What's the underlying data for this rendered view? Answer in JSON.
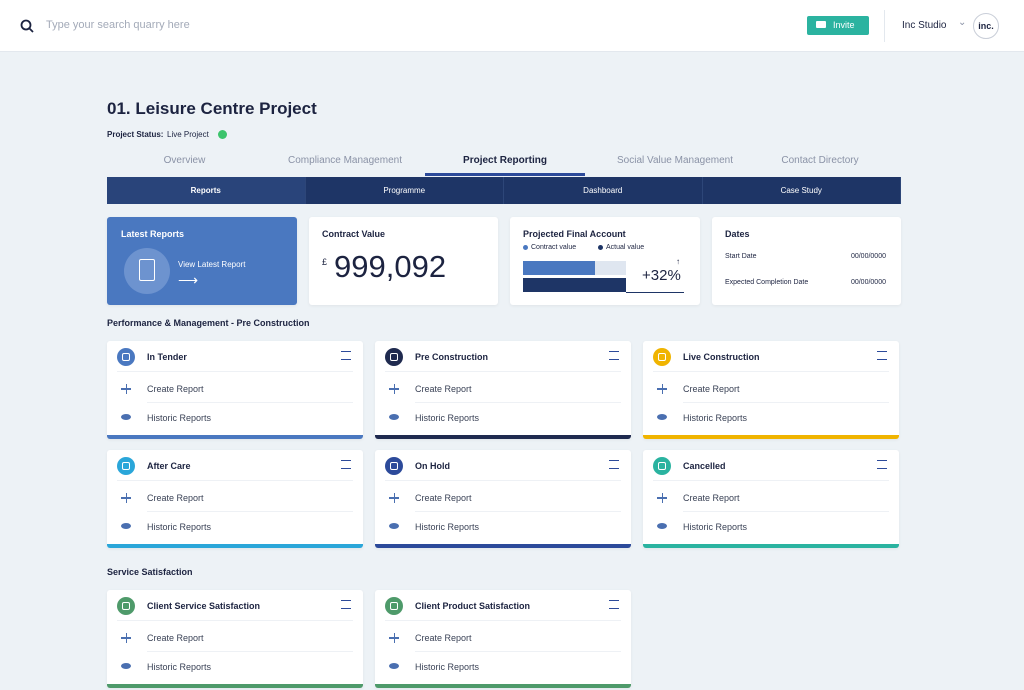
{
  "header": {
    "search_placeholder": "Type your search quarry here",
    "invite": "Invite",
    "workspace": "Inc Studio",
    "avatar": "inc."
  },
  "project": {
    "title": "01. Leisure Centre Project",
    "status_label": "Project Status:",
    "status": "Live Project"
  },
  "tabs": [
    "Overview",
    "Compliance Management",
    "Project Reporting",
    "Social Value Management",
    "Contact Directory"
  ],
  "subtabs": [
    "Reports",
    "Programme",
    "Dashboard",
    "Case Study"
  ],
  "summary": {
    "latest_reports": {
      "title": "Latest Reports",
      "link": "View Latest Report"
    },
    "contract_value": {
      "title": "Contract Value",
      "currency": "£",
      "amount": "999,092"
    },
    "projected": {
      "title": "Projected Final Account",
      "legend": [
        "Contract value",
        "Actual value"
      ],
      "change": "+32%"
    },
    "dates": {
      "title": "Dates",
      "rows": [
        [
          "Start Date",
          "00/00/0000"
        ],
        [
          "Expected Completion Date",
          "00/00/0000"
        ]
      ]
    }
  },
  "sections": [
    {
      "title": "Performance & Management - Pre Construction",
      "cards": [
        {
          "title": "In Tender",
          "color": "#4a78c0",
          "actions": [
            "Create Report",
            "Historic Reports"
          ]
        },
        {
          "title": "Pre Construction",
          "color": "#1f2a4f",
          "actions": [
            "Create Report",
            "Historic Reports"
          ]
        },
        {
          "title": "Live Construction",
          "color": "#f0b400",
          "actions": [
            "Create Report",
            "Historic Reports"
          ]
        },
        {
          "title": "After Care",
          "color": "#2aa6d9",
          "actions": [
            "Create Report",
            "Historic Reports"
          ]
        },
        {
          "title": "On Hold",
          "color": "#2c4a9a",
          "actions": [
            "Create Report",
            "Historic Reports"
          ]
        },
        {
          "title": "Cancelled",
          "color": "#2ab3a0",
          "actions": [
            "Create Report",
            "Historic Reports"
          ]
        }
      ]
    },
    {
      "title": "Service Satisfaction",
      "cards": [
        {
          "title": "Client Service Satisfaction",
          "color": "#4e9a6a",
          "actions": [
            "Create Report",
            "Historic Reports"
          ]
        },
        {
          "title": "Client Product Satisfaction",
          "color": "#4e9a6a",
          "actions": [
            "Create Report",
            "Historic Reports"
          ]
        }
      ]
    }
  ]
}
